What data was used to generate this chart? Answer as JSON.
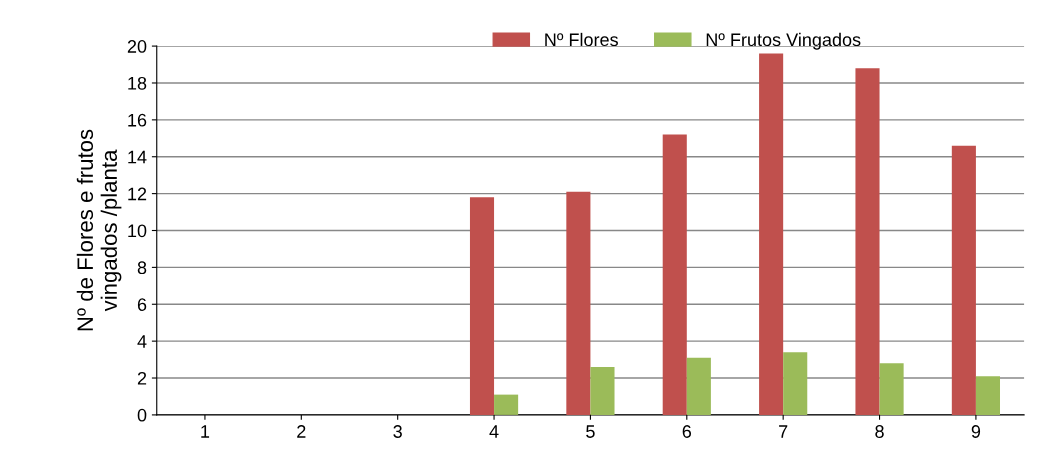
{
  "chart_data": {
    "type": "bar",
    "ylabel": "Nº de Flores e frutos\nvingados /planta",
    "categories": [
      "1",
      "2",
      "3",
      "4",
      "5",
      "6",
      "7",
      "8",
      "9"
    ],
    "series": [
      {
        "name": "Nº Flores",
        "color": "#c0504d",
        "values": [
          0,
          0,
          0,
          11.8,
          12.1,
          15.2,
          19.6,
          18.8,
          14.6
        ]
      },
      {
        "name": "Nº Frutos Vingados",
        "color": "#9bbb59",
        "values": [
          0,
          0,
          0,
          1.1,
          2.6,
          3.1,
          3.4,
          2.8,
          2.1
        ]
      }
    ],
    "ylim": [
      0,
      20
    ],
    "yticks": [
      0,
      2,
      4,
      6,
      8,
      10,
      12,
      14,
      16,
      18,
      20
    ],
    "grid": "y",
    "legend": "top"
  }
}
